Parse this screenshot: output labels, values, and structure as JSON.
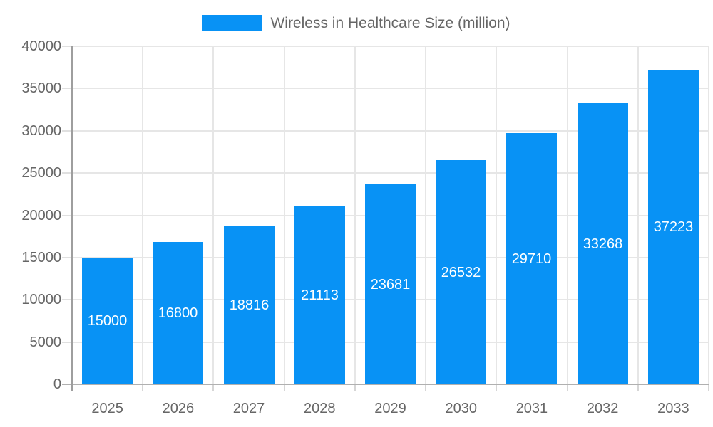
{
  "legend": {
    "label": "Wireless in Healthcare Size (million)"
  },
  "colors": {
    "bar": "#0892f5",
    "grid": "#e6e6e6",
    "x_axis": "#b0b0b0",
    "y_axis": "#9e9e9e",
    "y_tick": "#e0e0e0",
    "x_tick": "#d6d6d6",
    "tick_label": "#666666",
    "value_label": "#ffffff",
    "legend_label": "#666666",
    "background": "#ffffff"
  },
  "chart_data": {
    "type": "bar",
    "title": "Wireless in Healthcare Size (million)",
    "categories": [
      "2025",
      "2026",
      "2027",
      "2028",
      "2029",
      "2030",
      "2031",
      "2032",
      "2033"
    ],
    "values": [
      15000,
      16800,
      18816,
      21113,
      23681,
      26532,
      29710,
      33268,
      37223
    ],
    "series": [
      {
        "name": "Wireless in Healthcare Size (million)",
        "values": [
          15000,
          16800,
          18816,
          21113,
          23681,
          26532,
          29710,
          33268,
          37223
        ]
      }
    ],
    "xlabel": "",
    "ylabel": "",
    "ylim": [
      0,
      40000
    ],
    "yticks": [
      0,
      5000,
      10000,
      15000,
      20000,
      25000,
      30000,
      35000,
      40000
    ],
    "grid": true,
    "legend_position": "top",
    "value_label_position": "inside-center",
    "bar_fraction_of_category": 0.72
  }
}
